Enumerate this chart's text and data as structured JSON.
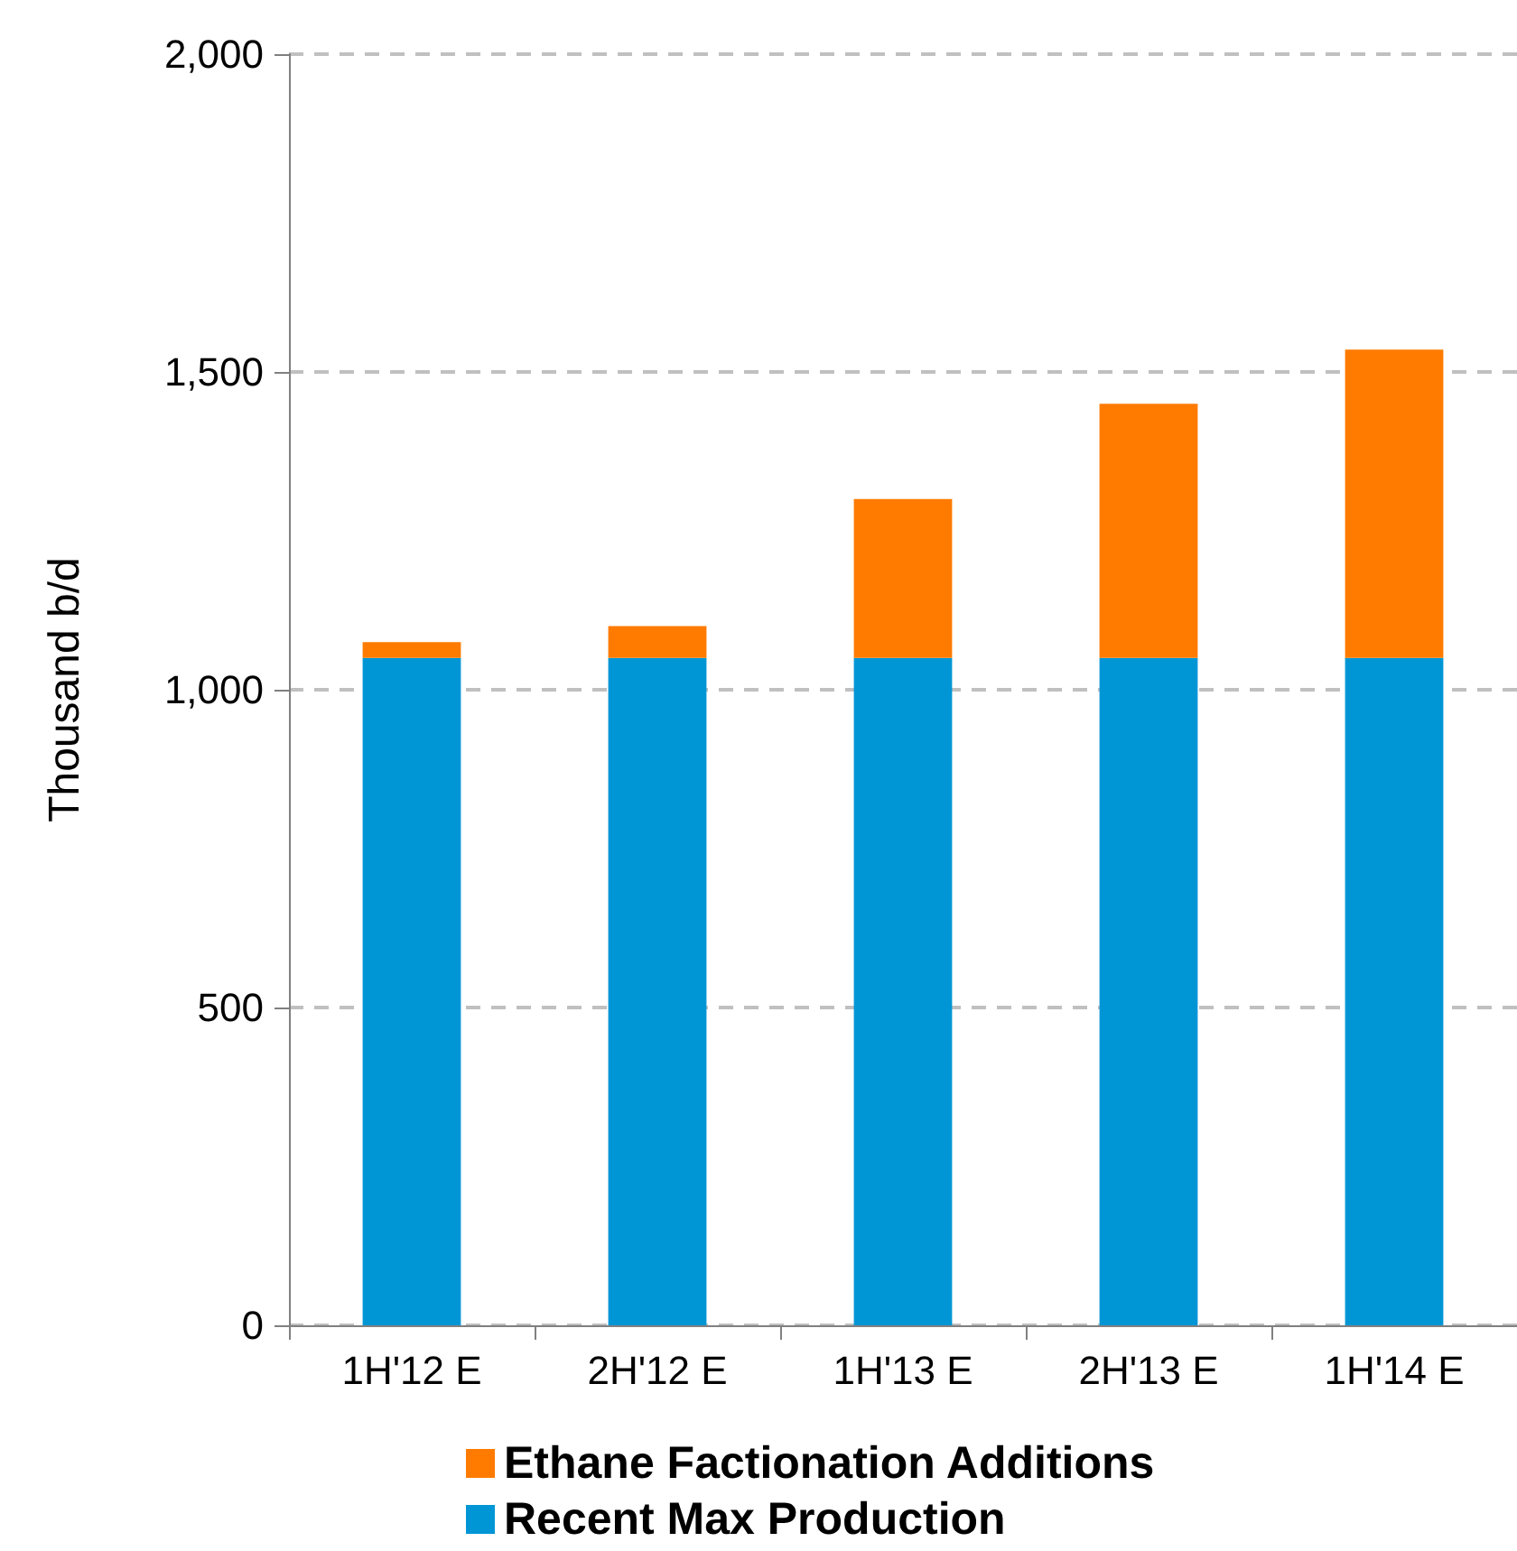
{
  "chart_data": {
    "type": "bar",
    "stacked": true,
    "ylabel": "Thousand b/d",
    "categories": [
      "1H'12 E",
      "2H'12 E",
      "1H'13 E",
      "2H'13 E",
      "1H'14 E"
    ],
    "series": [
      {
        "name": "Recent Max Production",
        "color": "#0096d6",
        "values": [
          1050,
          1050,
          1050,
          1050,
          1050
        ]
      },
      {
        "name": "Ethane Factionation Additions",
        "color": "#ff7b00",
        "values": [
          25,
          50,
          250,
          400,
          485
        ]
      }
    ],
    "ylim": [
      0,
      2000
    ],
    "yticks": [
      {
        "value": 0,
        "label": "0"
      },
      {
        "value": 500,
        "label": "500"
      },
      {
        "value": 1000,
        "label": "1,000"
      },
      {
        "value": 1500,
        "label": "1,500"
      },
      {
        "value": 2000,
        "label": "2,000"
      }
    ],
    "grid": "y",
    "legend": "bottom"
  }
}
